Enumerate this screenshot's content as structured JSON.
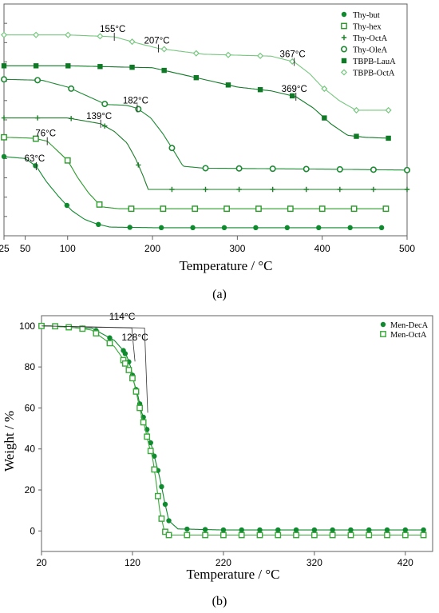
{
  "chart_data": [
    {
      "type": "line",
      "panel_label": "(a)",
      "xlabel": "Temperature / °C",
      "ylabel": "",
      "xlim": [
        25,
        500
      ],
      "ylim": [
        0,
        120
      ],
      "x_ticks": [
        25,
        50,
        100,
        200,
        300,
        400,
        500
      ],
      "x_tick_labels": [
        "25",
        "50",
        "100",
        "200",
        "300",
        "400",
        "500"
      ],
      "legend_position": "top-right",
      "grid": false,
      "series": [
        {
          "name": "Thy-but",
          "color": "#0f8a2e",
          "marker": "filled-circle",
          "onset_label": "63°C",
          "onset_x": 63,
          "x": [
            25,
            50,
            63,
            75,
            90,
            105,
            120,
            135,
            150,
            200,
            300,
            400,
            450,
            470
          ],
          "y": [
            41,
            40,
            36,
            28,
            20,
            13,
            8.5,
            6,
            4.5,
            4.2,
            4.2,
            4.2,
            4.2,
            4.2
          ]
        },
        {
          "name": "Thy-hex",
          "color": "#2b9a2b",
          "marker": "open-square",
          "onset_label": "76°C",
          "onset_x": 76,
          "x": [
            25,
            60,
            76,
            88,
            100,
            112,
            125,
            140,
            160,
            200,
            300,
            400,
            475
          ],
          "y": [
            51,
            50.5,
            49,
            44,
            39,
            30,
            22,
            15,
            14,
            14,
            14,
            14,
            14
          ]
        },
        {
          "name": "Thy-OctA",
          "color": "#1e7d2a",
          "marker": "plus",
          "onset_label": "139°C",
          "onset_x": 139,
          "x": [
            25,
            100,
            139,
            155,
            170,
            180,
            188,
            195,
            210,
            300,
            400,
            500
          ],
          "y": [
            61,
            61,
            58,
            54,
            48,
            40,
            32,
            24,
            24,
            24,
            24,
            24
          ]
        },
        {
          "name": "Thy-OleA",
          "color": "#1e8a34",
          "marker": "open-circle",
          "onset_label": "182°C",
          "onset_x": 182,
          "x": [
            25,
            70,
            100,
            125,
            145,
            170,
            182,
            198,
            212,
            225,
            236,
            260,
            400,
            500
          ],
          "y": [
            81,
            80.5,
            77,
            72,
            68,
            67.5,
            66,
            61,
            53,
            44,
            36,
            35,
            34.5,
            34
          ]
        },
        {
          "name": "TBPB-LauA",
          "color": "#0f7a25",
          "marker": "filled-square",
          "onset_label": "369°C",
          "onset_x": 369,
          "x": [
            25,
            100,
            150,
            200,
            250,
            300,
            340,
            369,
            390,
            410,
            430,
            450,
            478
          ],
          "y": [
            88,
            88,
            87.5,
            87,
            82,
            77,
            75,
            72,
            66,
            58,
            52,
            51,
            50.5
          ]
        },
        {
          "name": "TBPB-OctA",
          "color": "#77c77f",
          "marker": "open-diamond",
          "onset_label": "155°C",
          "onset_x": 155,
          "onset2_label": "207°C",
          "onset2_x": 207,
          "onset3_label": "367°C",
          "onset3_x": 367,
          "x": [
            25,
            100,
            155,
            180,
            207,
            260,
            300,
            340,
            367,
            385,
            400,
            420,
            440,
            478
          ],
          "y": [
            104,
            104,
            103,
            100,
            97,
            94,
            93.5,
            93,
            90,
            84,
            77,
            70,
            65,
            65
          ]
        }
      ]
    },
    {
      "type": "line",
      "panel_label": "(b)",
      "xlabel": "Temperature / °C",
      "ylabel": "Weight / %",
      "xlim": [
        20,
        450
      ],
      "ylim": [
        -10,
        105
      ],
      "x_ticks": [
        20,
        120,
        220,
        320,
        420
      ],
      "x_tick_labels": [
        "20",
        "120",
        "220",
        "320",
        "420"
      ],
      "y_ticks": [
        0,
        20,
        40,
        60,
        80,
        100
      ],
      "y_tick_labels": [
        "0",
        "20",
        "40",
        "60",
        "80",
        "100"
      ],
      "legend_position": "top-right",
      "grid": false,
      "series": [
        {
          "name": "Men-DecA",
          "color": "#0f8a2e",
          "marker": "filled-circle",
          "onset_label": "114°C",
          "onset_x": 114,
          "x": [
            20,
            30,
            60,
            75,
            100,
            110,
            114,
            118,
            122,
            126,
            130,
            134,
            138,
            142,
            146,
            150,
            155,
            160,
            170,
            220,
            320,
            420,
            440
          ],
          "y": [
            100,
            100,
            99,
            99,
            93,
            88,
            85,
            80,
            72,
            66,
            58,
            53,
            46,
            40,
            33,
            26,
            15,
            5,
            1,
            0.5,
            0.5,
            0.5,
            0.5
          ]
        },
        {
          "name": "Men-OctA",
          "color": "#3aa83a",
          "marker": "open-square",
          "onset_label": "128°C",
          "onset_x": 128,
          "x": [
            20,
            30,
            60,
            75,
            100,
            108,
            114,
            118,
            122,
            126,
            130,
            134,
            138,
            142,
            146,
            150,
            155,
            160,
            200,
            320,
            440
          ],
          "y": [
            100,
            100,
            99,
            98,
            90,
            85,
            80,
            77,
            72,
            64,
            56,
            50,
            42,
            36,
            24,
            10,
            0,
            -2,
            -2,
            -2,
            -2
          ]
        }
      ]
    }
  ]
}
